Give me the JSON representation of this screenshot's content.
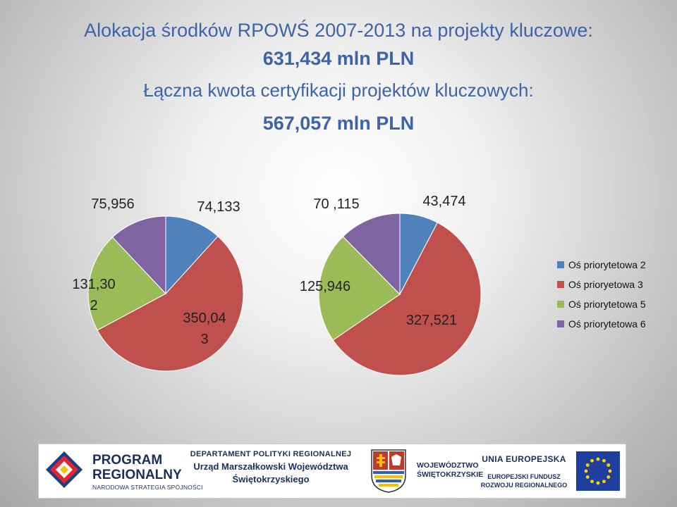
{
  "title": {
    "line1": "Alokacja środków RPOWŚ 2007-2013 na projekty kluczowe:",
    "line2": "631,434 mln PLN",
    "line3": "Łączna kwota certyfikacji projektów kluczowych:",
    "line4": "567,057 mln PLN"
  },
  "chart_data": [
    {
      "type": "pie",
      "title": "",
      "categories": [
        "Oś priorytetowa 2",
        "Oś prioryetowa 3",
        "Oś priorytetowa 5",
        "Oś priorytetowa 6"
      ],
      "values": [
        74.133,
        350.043,
        131.302,
        75.956
      ],
      "data_labels": [
        "74,133",
        "350,04\n3",
        "131,30\n2",
        "75,956"
      ]
    },
    {
      "type": "pie",
      "title": "",
      "categories": [
        "Oś priorytetowa 2",
        "Oś prioryetowa 3",
        "Oś priorytetowa 5",
        "Oś priorytetowa 6"
      ],
      "values": [
        43.474,
        327.521,
        125.946,
        70.115
      ],
      "data_labels": [
        "43,474",
        "327,521",
        "125,946",
        "70 ,115"
      ]
    }
  ],
  "legend": {
    "placement": "right",
    "items": [
      {
        "label": "Oś priorytetowa 2",
        "color": "#4f81bd"
      },
      {
        "label": "Oś prioryetowa 3",
        "color": "#c0504d"
      },
      {
        "label": "Oś priorytetowa 5",
        "color": "#9bbb59"
      },
      {
        "label": "Oś priorytetowa 6",
        "color": "#8064a2"
      }
    ]
  },
  "logos": {
    "program_line1": "PROGRAM",
    "program_line2": "REGIONALNY",
    "program_line3": "NARODOWA STRATEGIA SPÓJNOŚCI",
    "dept_line1": "DEPARTAMENT POLITYKI REGIONALNEJ",
    "dept_line2": "Urząd Marszałkowski Województwa",
    "dept_line3": "Świętokrzyskiego",
    "woj_line1": "WOJEWÓDZTWO",
    "woj_line2": "ŚWIĘTOKRZYSKIE",
    "ue_line1": "UNIA EUROPEJSKA",
    "ue_line2": "EUROPEJSKI FUNDUSZ",
    "ue_line3": "ROZWOJU REGIONALNEGO"
  }
}
